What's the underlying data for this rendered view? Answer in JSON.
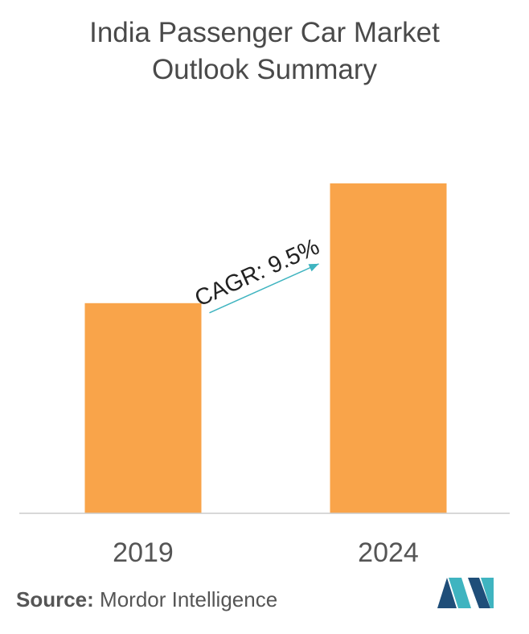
{
  "title_line1": "India Passenger Car Market",
  "title_line2": "Outlook Summary",
  "chart_data": {
    "type": "bar",
    "title": "India Passenger Car Market Outlook Summary",
    "categories": [
      "2019",
      "2024"
    ],
    "values": [
      1.0,
      1.57
    ],
    "annotation": "CAGR: 9.5%",
    "xlabel": "",
    "ylabel": "",
    "ylim": [
      0,
      1.65
    ],
    "grid": false,
    "bar_color": "#f9a44a",
    "arrow_color": "#3fb4c0"
  },
  "source": {
    "label": "Source:",
    "text": "Mordor Intelligence"
  },
  "logo": {
    "icon": "mordor-intelligence-logo-icon",
    "colors": [
      "#1f4e79",
      "#3fb4c0"
    ]
  }
}
